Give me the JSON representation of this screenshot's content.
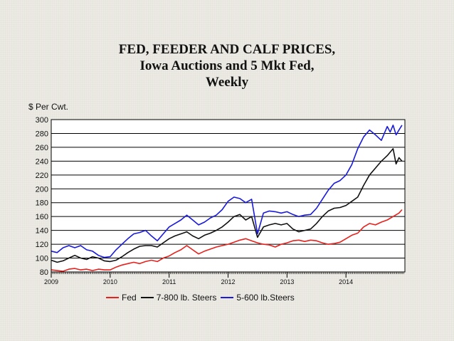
{
  "title_lines": [
    "FED, FEEDER AND CALF  PRICES,",
    "Iowa Auctions and 5 Mkt Fed,",
    "Weekly"
  ],
  "chart_data": {
    "type": "line",
    "ylabel": "$ Per Cwt.",
    "ylim": [
      80,
      300
    ],
    "yticks": [
      80,
      100,
      120,
      140,
      160,
      180,
      200,
      220,
      240,
      260,
      280,
      300
    ],
    "xlim": [
      2009,
      2015
    ],
    "xticks": [
      "2009",
      "2010",
      "2011",
      "2012",
      "2013",
      "2014"
    ],
    "grid": true,
    "legend_position": "bottom",
    "series": [
      {
        "name": "Fed",
        "color": "#e8211c",
        "x": [
          2009.0,
          2009.1,
          2009.2,
          2009.3,
          2009.4,
          2009.5,
          2009.6,
          2009.7,
          2009.8,
          2009.9,
          2010.0,
          2010.1,
          2010.2,
          2010.3,
          2010.4,
          2010.5,
          2010.6,
          2010.7,
          2010.8,
          2010.9,
          2011.0,
          2011.1,
          2011.2,
          2011.3,
          2011.4,
          2011.5,
          2011.6,
          2011.7,
          2011.8,
          2011.9,
          2012.0,
          2012.1,
          2012.2,
          2012.3,
          2012.4,
          2012.5,
          2012.6,
          2012.7,
          2012.8,
          2012.9,
          2013.0,
          2013.1,
          2013.2,
          2013.3,
          2013.4,
          2013.5,
          2013.6,
          2013.7,
          2013.8,
          2013.9,
          2014.0,
          2014.1,
          2014.2,
          2014.3,
          2014.4,
          2014.5,
          2014.6,
          2014.7,
          2014.8,
          2014.9,
          2014.95
        ],
        "values": [
          83,
          82,
          81,
          84,
          85,
          83,
          84,
          82,
          84,
          83,
          83,
          87,
          90,
          92,
          94,
          92,
          95,
          97,
          95,
          100,
          103,
          108,
          112,
          118,
          112,
          106,
          110,
          113,
          116,
          118,
          120,
          123,
          126,
          128,
          125,
          122,
          120,
          119,
          116,
          120,
          122,
          125,
          126,
          124,
          126,
          125,
          122,
          120,
          121,
          123,
          128,
          133,
          136,
          145,
          150,
          148,
          152,
          155,
          160,
          165,
          170
        ]
      },
      {
        "name": "7-800 lb. Steers",
        "color": "#111111",
        "x": [
          2009.0,
          2009.1,
          2009.2,
          2009.3,
          2009.4,
          2009.5,
          2009.6,
          2009.7,
          2009.8,
          2009.9,
          2010.0,
          2010.1,
          2010.2,
          2010.3,
          2010.4,
          2010.5,
          2010.6,
          2010.7,
          2010.8,
          2010.9,
          2011.0,
          2011.1,
          2011.2,
          2011.3,
          2011.4,
          2011.5,
          2011.6,
          2011.7,
          2011.8,
          2011.9,
          2012.0,
          2012.1,
          2012.2,
          2012.3,
          2012.4,
          2012.5,
          2012.6,
          2012.7,
          2012.8,
          2012.9,
          2013.0,
          2013.1,
          2013.2,
          2013.3,
          2013.4,
          2013.5,
          2013.6,
          2013.7,
          2013.8,
          2013.9,
          2014.0,
          2014.1,
          2014.2,
          2014.3,
          2014.4,
          2014.5,
          2014.6,
          2014.7,
          2014.8,
          2014.85,
          2014.9,
          2014.95
        ],
        "values": [
          97,
          94,
          96,
          100,
          104,
          100,
          98,
          102,
          100,
          96,
          95,
          97,
          102,
          108,
          113,
          117,
          118,
          118,
          116,
          122,
          128,
          132,
          135,
          138,
          132,
          128,
          133,
          136,
          140,
          145,
          152,
          160,
          163,
          155,
          160,
          130,
          145,
          148,
          150,
          148,
          150,
          142,
          138,
          140,
          142,
          150,
          160,
          168,
          172,
          173,
          176,
          182,
          188,
          205,
          220,
          230,
          240,
          248,
          258,
          236,
          245,
          240
        ]
      },
      {
        "name": "5-600 lb.Steers",
        "color": "#1a1adc",
        "x": [
          2009.0,
          2009.1,
          2009.2,
          2009.3,
          2009.4,
          2009.5,
          2009.6,
          2009.7,
          2009.8,
          2009.9,
          2010.0,
          2010.1,
          2010.2,
          2010.3,
          2010.4,
          2010.5,
          2010.6,
          2010.7,
          2010.8,
          2010.9,
          2011.0,
          2011.1,
          2011.2,
          2011.3,
          2011.4,
          2011.5,
          2011.6,
          2011.7,
          2011.8,
          2011.9,
          2012.0,
          2012.1,
          2012.2,
          2012.3,
          2012.4,
          2012.5,
          2012.6,
          2012.7,
          2012.8,
          2012.9,
          2013.0,
          2013.1,
          2013.2,
          2013.3,
          2013.4,
          2013.5,
          2013.6,
          2013.7,
          2013.8,
          2013.9,
          2014.0,
          2014.1,
          2014.2,
          2014.3,
          2014.4,
          2014.5,
          2014.6,
          2014.7,
          2014.75,
          2014.8,
          2014.85,
          2014.9,
          2014.95
        ],
        "values": [
          110,
          108,
          115,
          118,
          115,
          118,
          112,
          110,
          104,
          101,
          102,
          112,
          120,
          128,
          135,
          137,
          140,
          132,
          125,
          135,
          145,
          150,
          155,
          162,
          155,
          148,
          152,
          158,
          162,
          170,
          182,
          188,
          186,
          180,
          185,
          135,
          165,
          168,
          167,
          165,
          167,
          163,
          160,
          162,
          163,
          172,
          185,
          198,
          208,
          212,
          220,
          235,
          258,
          275,
          285,
          278,
          270,
          290,
          282,
          292,
          278,
          285,
          292
        ]
      }
    ]
  }
}
